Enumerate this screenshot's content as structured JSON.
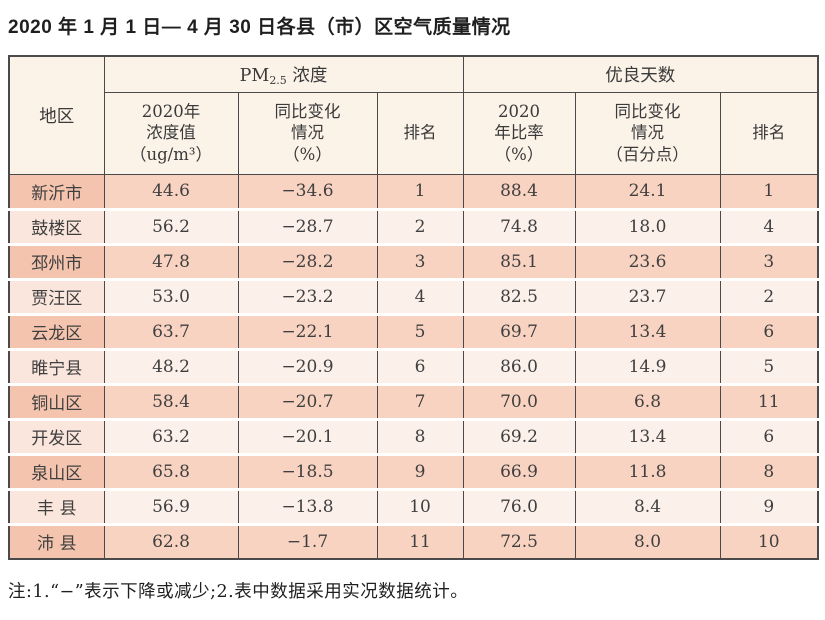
{
  "title": "2020 年 1 月 1 日— 4 月 30 日各县（市）区空气质量情况",
  "table": {
    "header": {
      "region": "地区",
      "pm25_group": {
        "prefix": "PM",
        "sub": "2.5",
        "suffix": " 浓度"
      },
      "good_days_group": "优良天数",
      "sub_headers": [
        "2020年\n浓度值\n（ug/m³）",
        "同比变化\n情况\n（%）",
        "排名",
        "2020\n年比率\n（%）",
        "同比变化\n情况\n（百分点）",
        "排名"
      ]
    },
    "rows": [
      {
        "region": "新沂市",
        "pm25_value": "44.6",
        "pm25_change": "−34.6",
        "pm25_rank": "1",
        "good_ratio": "88.4",
        "good_change": "24.1",
        "good_rank": "1"
      },
      {
        "region": "鼓楼区",
        "pm25_value": "56.2",
        "pm25_change": "−28.7",
        "pm25_rank": "2",
        "good_ratio": "74.8",
        "good_change": "18.0",
        "good_rank": "4"
      },
      {
        "region": "邳州市",
        "pm25_value": "47.8",
        "pm25_change": "−28.2",
        "pm25_rank": "3",
        "good_ratio": "85.1",
        "good_change": "23.6",
        "good_rank": "3"
      },
      {
        "region": "贾汪区",
        "pm25_value": "53.0",
        "pm25_change": "−23.2",
        "pm25_rank": "4",
        "good_ratio": "82.5",
        "good_change": "23.7",
        "good_rank": "2"
      },
      {
        "region": "云龙区",
        "pm25_value": "63.7",
        "pm25_change": "−22.1",
        "pm25_rank": "5",
        "good_ratio": "69.7",
        "good_change": "13.4",
        "good_rank": "6"
      },
      {
        "region": "睢宁县",
        "pm25_value": "48.2",
        "pm25_change": "−20.9",
        "pm25_rank": "6",
        "good_ratio": "86.0",
        "good_change": "14.9",
        "good_rank": "5"
      },
      {
        "region": "铜山区",
        "pm25_value": "58.4",
        "pm25_change": "−20.7",
        "pm25_rank": "7",
        "good_ratio": "70.0",
        "good_change": "6.8",
        "good_rank": "11"
      },
      {
        "region": "开发区",
        "pm25_value": "63.2",
        "pm25_change": "−20.1",
        "pm25_rank": "8",
        "good_ratio": "69.2",
        "good_change": "13.4",
        "good_rank": "6"
      },
      {
        "region": "泉山区",
        "pm25_value": "65.8",
        "pm25_change": "−18.5",
        "pm25_rank": "9",
        "good_ratio": "66.9",
        "good_change": "11.8",
        "good_rank": "8"
      },
      {
        "region": "丰 县",
        "pm25_value": "56.9",
        "pm25_change": "−13.8",
        "pm25_rank": "10",
        "good_ratio": "76.0",
        "good_change": "8.4",
        "good_rank": "9"
      },
      {
        "region": "沛 县",
        "pm25_value": "62.8",
        "pm25_change": "−1.7",
        "pm25_rank": "11",
        "good_ratio": "72.5",
        "good_change": "8.0",
        "good_rank": "10"
      }
    ]
  },
  "note": "注:1.“−”表示下降或减少;2.表中数据采用实况数据统计。",
  "colors": {
    "header_bg": "#fbf2e8",
    "row_odd_bg": "#f8d3c1",
    "row_odd_region_bg": "#f4c4ae",
    "row_even_bg": "#fcf0ea",
    "row_even_region_bg": "#fae6dc",
    "border": "#4a4a4a",
    "text": "#3f3f3f"
  }
}
